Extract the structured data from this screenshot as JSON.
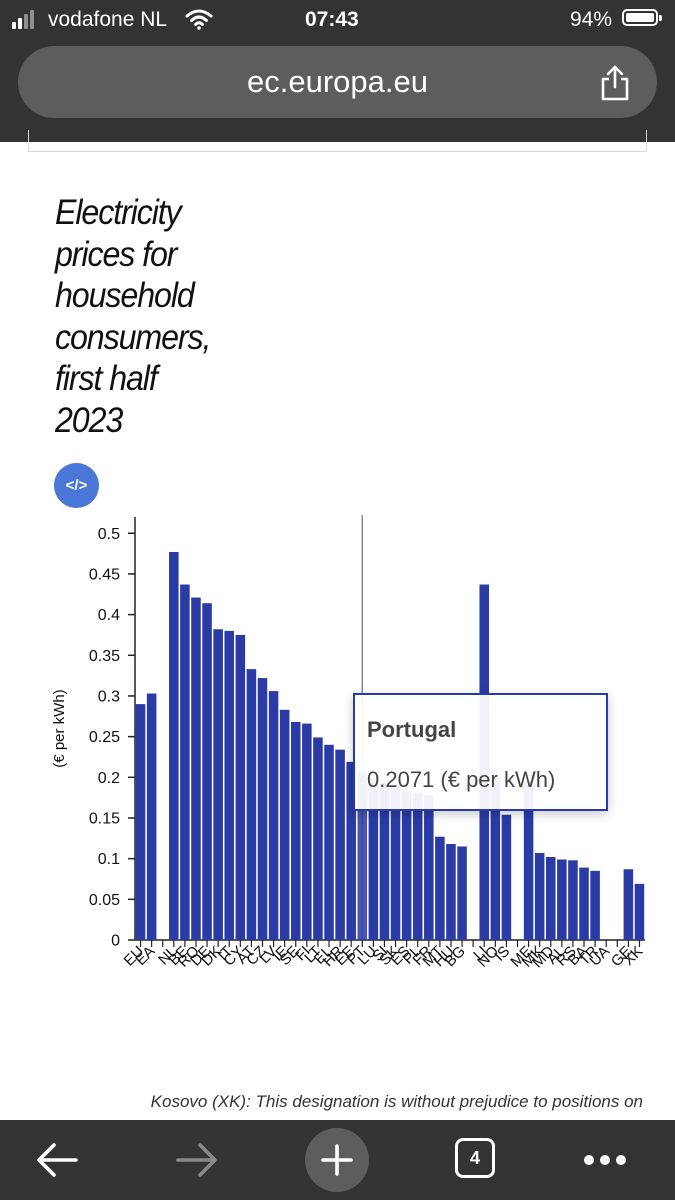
{
  "status_bar": {
    "carrier": "vodafone NL",
    "time": "07:43",
    "battery_percent": "94%",
    "battery_level": 0.94
  },
  "browser": {
    "url": "ec.europa.eu",
    "tab_count": "4"
  },
  "page": {
    "title_lines": [
      "Electricity",
      "prices for",
      "household",
      "consumers,",
      "first half",
      "2023"
    ],
    "embed_label": "</>",
    "footnote": "Kosovo (XK): This designation is without prejudice to positions on"
  },
  "chart_data": {
    "type": "bar",
    "title": "",
    "xlabel": "",
    "ylabel": "(€ per kWh)",
    "ylim": [
      0,
      0.52
    ],
    "yticks": [
      0,
      0.05,
      0.1,
      0.15,
      0.2,
      0.25,
      0.3,
      0.35,
      0.4,
      0.45,
      0.5
    ],
    "grid": false,
    "legend": "none",
    "bar_color": "#2a3ba6",
    "highlighted_category": "PT",
    "categories": [
      "EU",
      "EA",
      "",
      "NL",
      "BE",
      "RO",
      "DE",
      "DK",
      "IT",
      "CY",
      "AT",
      "CZ",
      "LV",
      "IE",
      "SE",
      "FI",
      "LT",
      "EL",
      "HR",
      "EE",
      "PT",
      "LU",
      "SI",
      "SK",
      "ES",
      "PL",
      "FR",
      "MT",
      "HU",
      "BG",
      "",
      "LI",
      "NO",
      "IS",
      "",
      "ME",
      "MK",
      "MD",
      "AL",
      "RS",
      "BA",
      "TR",
      "UA",
      "",
      "GE",
      "XK"
    ],
    "values": [
      0.29,
      0.303,
      null,
      0.477,
      0.437,
      0.421,
      0.414,
      0.382,
      0.38,
      0.375,
      0.333,
      0.322,
      0.306,
      0.283,
      0.268,
      0.266,
      0.249,
      0.24,
      0.234,
      0.219,
      0.2071,
      0.199,
      0.194,
      0.19,
      0.183,
      0.181,
      0.178,
      0.127,
      0.118,
      0.115,
      null,
      0.437,
      0.2,
      0.154,
      null,
      0.195,
      0.107,
      0.102,
      0.099,
      0.098,
      0.089,
      0.085,
      null,
      null,
      0.087,
      0.069
    ]
  },
  "tooltip": {
    "country": "Portugal",
    "value_text": "0.2071 (€ per kWh)"
  }
}
